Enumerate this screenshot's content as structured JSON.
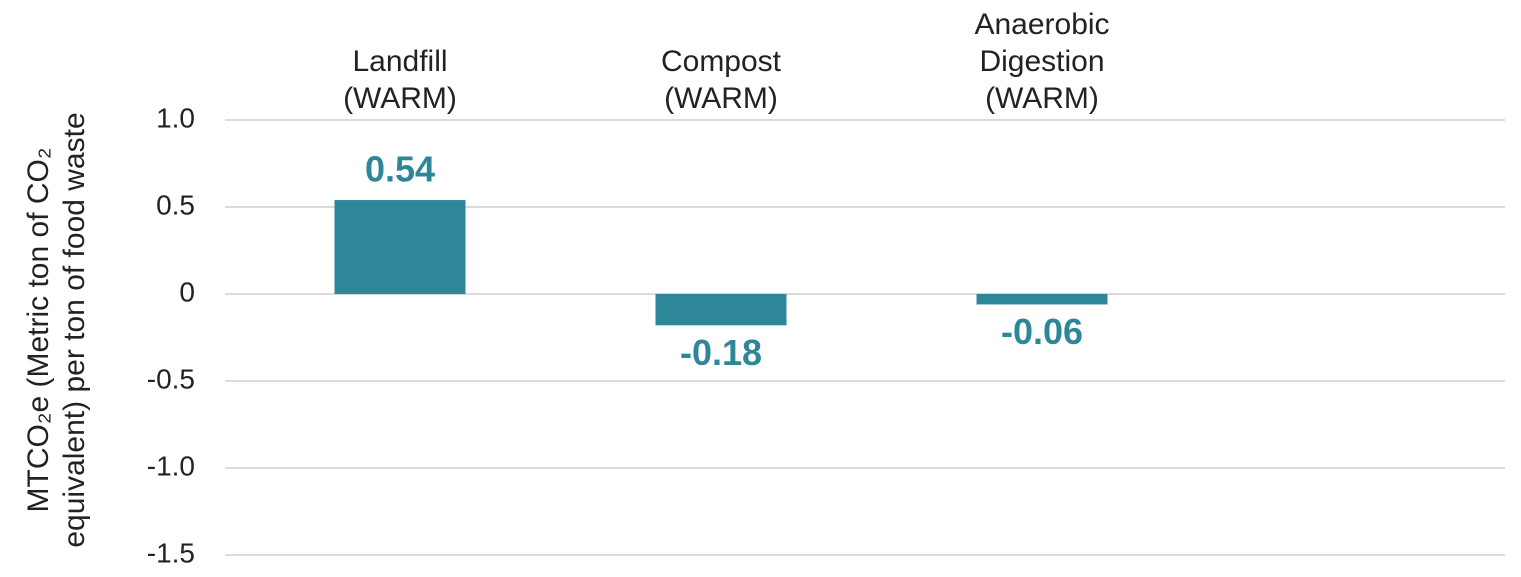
{
  "chart_data": {
    "type": "bar",
    "y_label": [
      "MTCO₂e (Metric ton of CO₂",
      "equivalent) per ton of food waste"
    ],
    "categories": [
      [
        "Landfill",
        "(WARM)"
      ],
      [
        "Compost",
        "(WARM)"
      ],
      [
        "Anaerobic",
        "Digestion",
        "(WARM)"
      ]
    ],
    "values": [
      0.54,
      -0.18,
      -0.06
    ],
    "color": "#2e8799",
    "ylim": [
      -1.5,
      1.0
    ],
    "yticks": [
      {
        "value": 1.0,
        "label": "1.0"
      },
      0.5,
      0,
      -0.5,
      {
        "value": -1.0,
        "label": "-1.0"
      },
      -1.5
    ],
    "grid": true
  }
}
